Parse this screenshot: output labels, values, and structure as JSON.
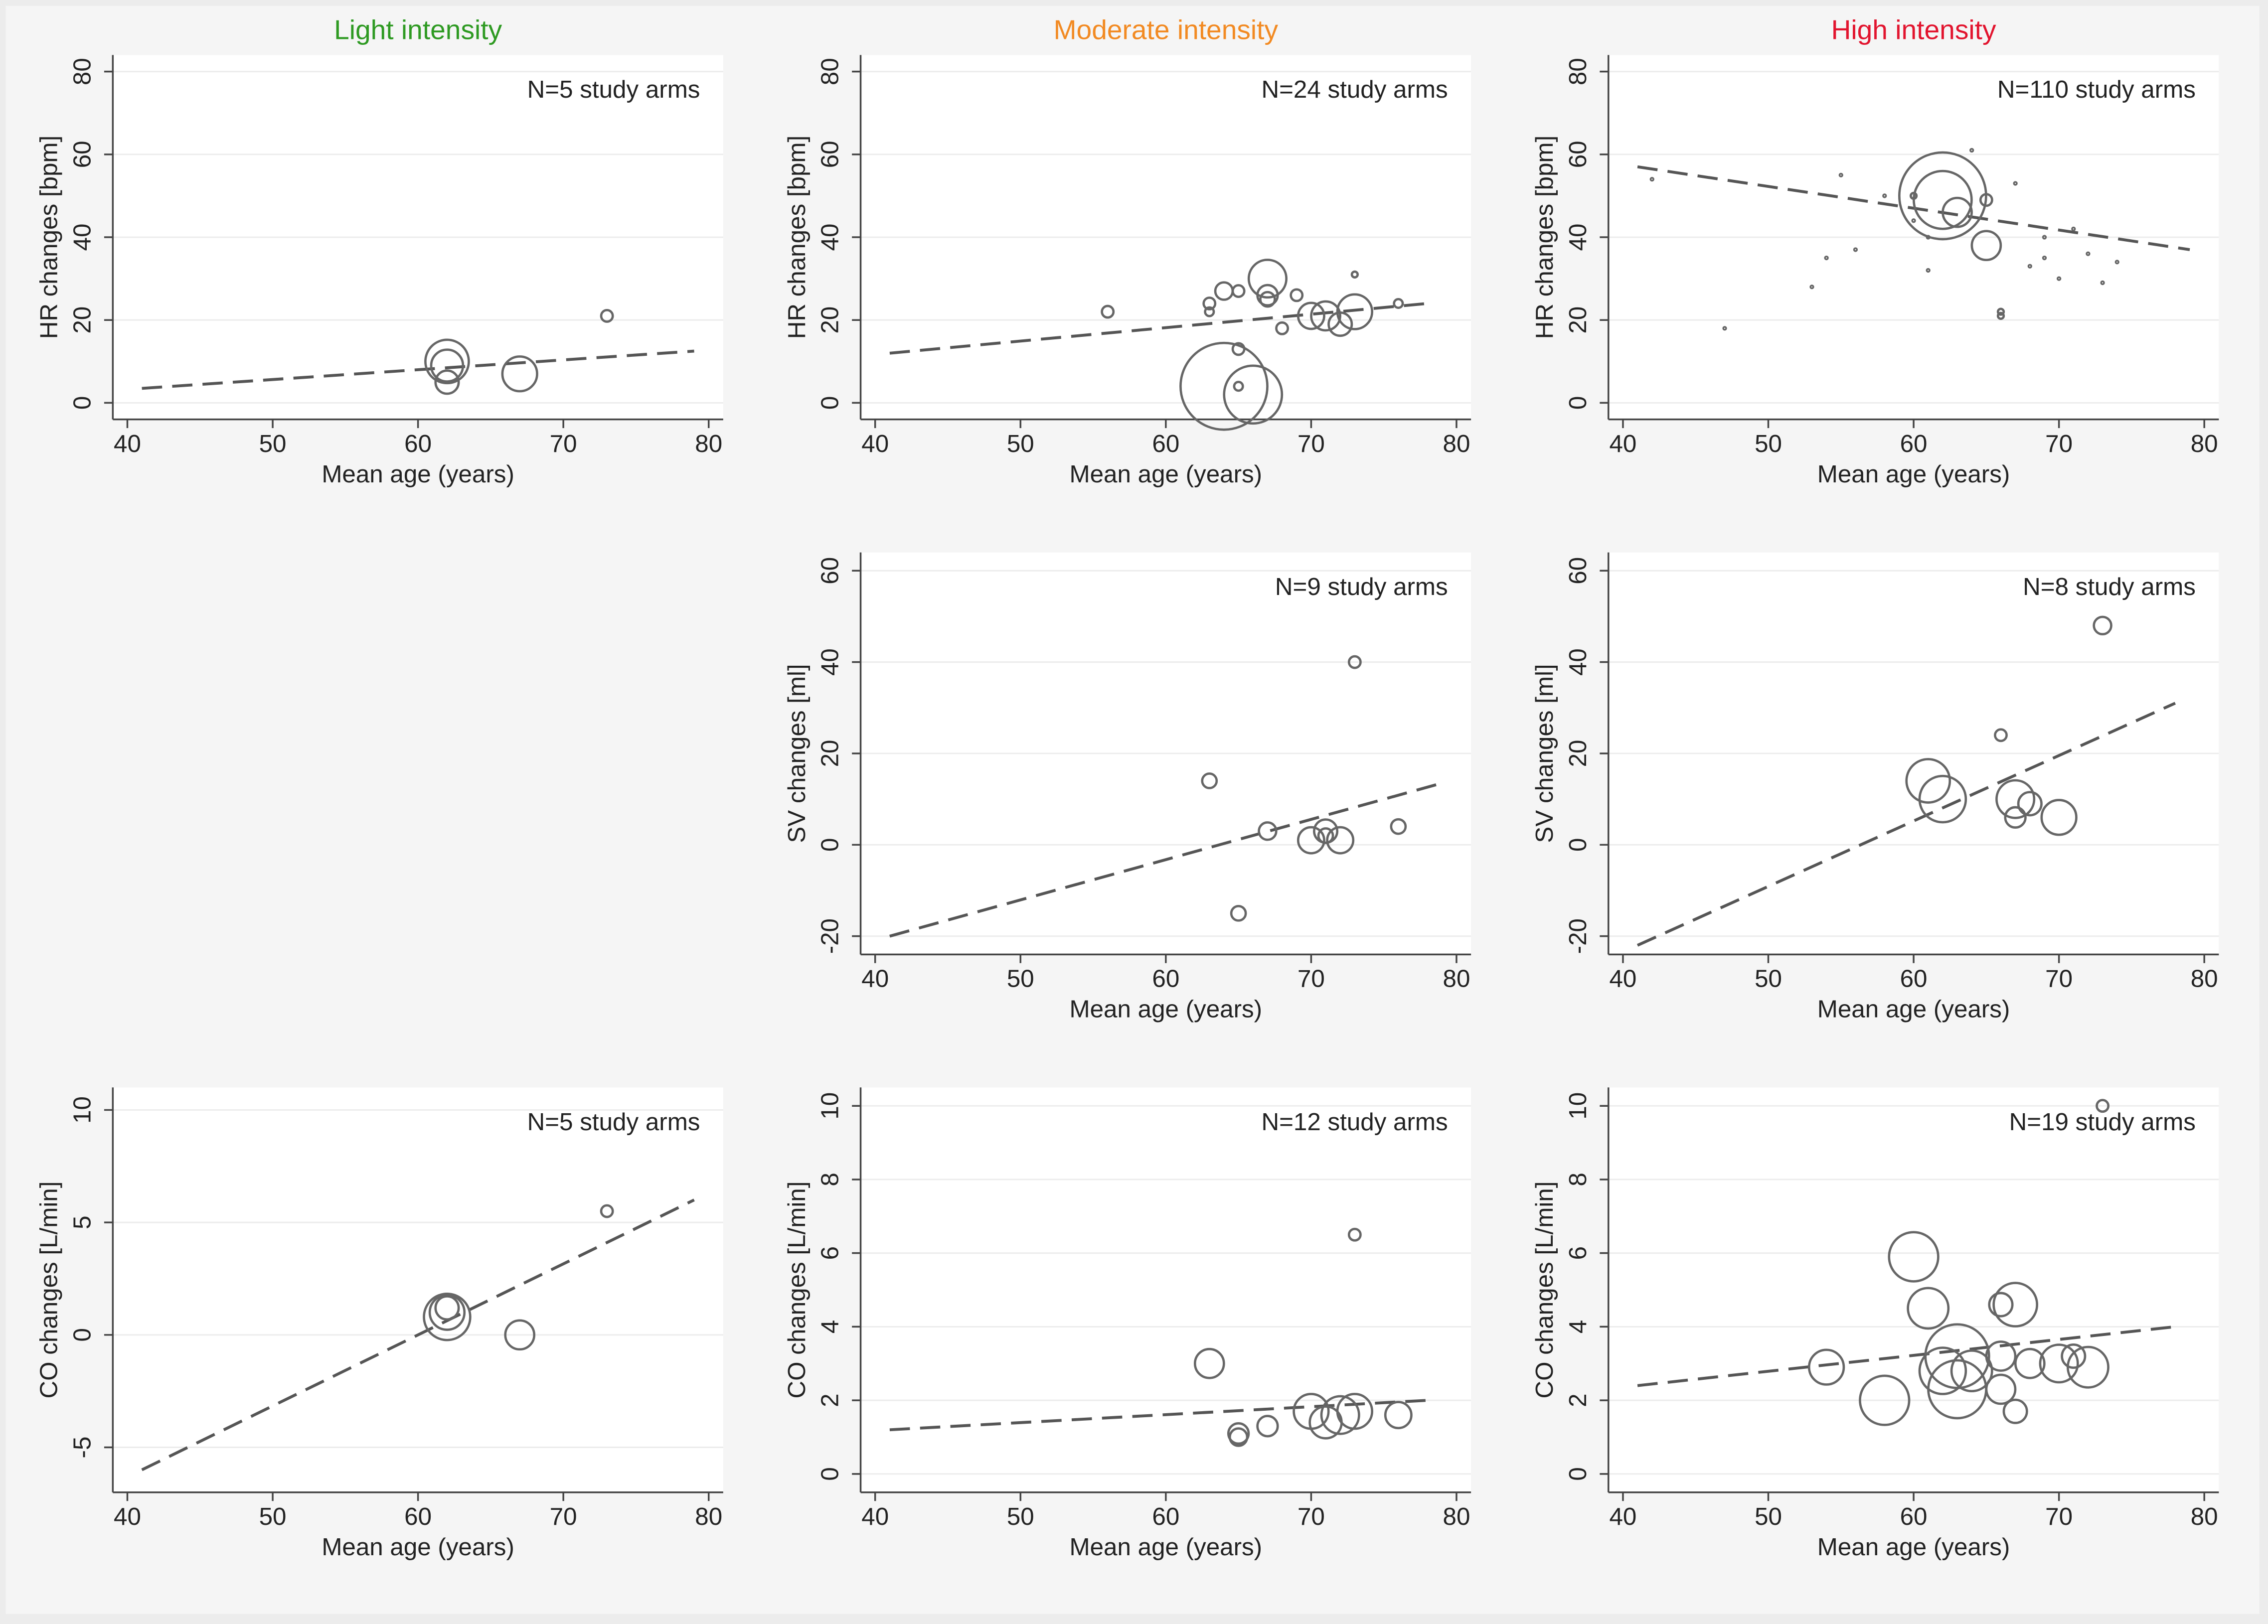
{
  "chart_data": [
    {
      "type": "bubble",
      "title": "Light intensity",
      "title_color": "#2e9a22",
      "annotation": "N=5 study arms",
      "xlabel": "Mean age (years)",
      "ylabel": "HR changes [bpm]",
      "x": [
        62,
        62,
        62,
        67,
        73
      ],
      "y": [
        10,
        9,
        5,
        7,
        21
      ],
      "size": [
        15,
        11,
        8,
        12,
        4
      ],
      "fit": {
        "x": [
          41,
          79
        ],
        "y": [
          3.5,
          12.5
        ]
      },
      "xlim": [
        39,
        81
      ],
      "xticks": [
        40,
        50,
        60,
        70,
        80
      ],
      "ylim": [
        -4,
        84
      ],
      "yticks": [
        0,
        20,
        40,
        60,
        80
      ],
      "grid": true
    },
    {
      "type": "bubble",
      "title": "Moderate intensity",
      "title_color": "#f28a22",
      "annotation": "N=24 study arms",
      "xlabel": "Mean age (years)",
      "ylabel": "HR changes [bpm]",
      "x": [
        56,
        63,
        63,
        64,
        65,
        67,
        67,
        67,
        69,
        68,
        70,
        71,
        72,
        73,
        73,
        76,
        64,
        66,
        65,
        65
      ],
      "y": [
        22,
        24,
        22,
        27,
        27,
        30,
        26,
        25,
        26,
        18,
        21,
        21,
        19,
        22,
        31,
        24,
        4,
        2,
        13,
        4
      ],
      "size": [
        4,
        4,
        3,
        6,
        4,
        13,
        7,
        5,
        4,
        4,
        9,
        10,
        8,
        12,
        2,
        3,
        30,
        20,
        4,
        3
      ],
      "fit": {
        "x": [
          41,
          78
        ],
        "y": [
          12,
          24
        ]
      },
      "xlim": [
        39,
        81
      ],
      "xticks": [
        40,
        50,
        60,
        70,
        80
      ],
      "ylim": [
        -4,
        84
      ],
      "yticks": [
        0,
        20,
        40,
        60,
        80
      ],
      "grid": true
    },
    {
      "type": "bubble",
      "title": "High intensity",
      "title_color": "#e2142e",
      "annotation": "N=110 study arms",
      "xlabel": "Mean age (years)",
      "ylabel": "HR changes [bpm]",
      "x": [
        62,
        62,
        63,
        65,
        65,
        66,
        66,
        47,
        53,
        54,
        56,
        58,
        60,
        61,
        68,
        69,
        70,
        72,
        73,
        55,
        61,
        64,
        67,
        69,
        71,
        74,
        42,
        60
      ],
      "y": [
        50,
        49,
        46,
        38,
        49,
        21,
        22,
        18,
        28,
        35,
        37,
        50,
        44,
        32,
        33,
        40,
        30,
        36,
        29,
        55,
        40,
        61,
        53,
        35,
        42,
        34,
        54,
        50
      ],
      "size": [
        30,
        20,
        10,
        10,
        4,
        2,
        2,
        1,
        1,
        1,
        1,
        1,
        1,
        1,
        1,
        1,
        1,
        1,
        1,
        1,
        1,
        1,
        1,
        1,
        1,
        1,
        1,
        2
      ],
      "fit": {
        "x": [
          41,
          79
        ],
        "y": [
          57,
          37
        ]
      },
      "xlim": [
        39,
        81
      ],
      "xticks": [
        40,
        50,
        60,
        70,
        80
      ],
      "ylim": [
        -4,
        84
      ],
      "yticks": [
        0,
        20,
        40,
        60,
        80
      ],
      "grid": true
    },
    {
      "type": "bubble",
      "annotation": "N=9 study arms",
      "xlabel": "Mean age (years)",
      "ylabel": "SV changes [ml]",
      "x": [
        63,
        65,
        67,
        70,
        71,
        71,
        72,
        73,
        76
      ],
      "y": [
        14,
        -15,
        3,
        1,
        3,
        2,
        1,
        40,
        4
      ],
      "size": [
        5,
        5,
        6,
        9,
        8,
        5,
        9,
        4,
        5
      ],
      "fit": {
        "x": [
          41,
          79
        ],
        "y": [
          -20,
          13.5
        ]
      },
      "xlim": [
        39,
        81
      ],
      "xticks": [
        40,
        50,
        60,
        70,
        80
      ],
      "ylim": [
        -24,
        64
      ],
      "yticks": [
        -20,
        0,
        20,
        40,
        60
      ],
      "grid": true
    },
    {
      "type": "bubble",
      "annotation": "N=8 study arms",
      "xlabel": "Mean age (years)",
      "ylabel": "SV changes [ml]",
      "x": [
        61,
        62,
        66,
        67,
        67,
        68,
        70,
        73
      ],
      "y": [
        14,
        10,
        24,
        10,
        6,
        9,
        6,
        48
      ],
      "size": [
        15,
        16,
        4,
        13,
        7,
        8,
        12,
        6
      ],
      "fit": {
        "x": [
          41,
          78
        ],
        "y": [
          -22,
          31
        ]
      },
      "xlim": [
        39,
        81
      ],
      "xticks": [
        40,
        50,
        60,
        70,
        80
      ],
      "ylim": [
        -24,
        64
      ],
      "yticks": [
        -20,
        0,
        20,
        40,
        60
      ],
      "grid": true
    },
    {
      "type": "bubble",
      "annotation": "N=5 study arms",
      "xlabel": "Mean age (years)",
      "ylabel": "CO changes [L/min]",
      "x": [
        62,
        62,
        62,
        67,
        73
      ],
      "y": [
        0.8,
        1.0,
        1.2,
        0,
        5.5
      ],
      "size": [
        16,
        12,
        8,
        10,
        4
      ],
      "fit": {
        "x": [
          41,
          79
        ],
        "y": [
          -6,
          6
        ]
      },
      "xlim": [
        39,
        81
      ],
      "xticks": [
        40,
        50,
        60,
        70,
        80
      ],
      "ylim": [
        -7,
        11
      ],
      "yticks": [
        -5,
        0,
        5,
        10
      ],
      "grid": true
    },
    {
      "type": "bubble",
      "annotation": "N=12 study arms",
      "xlabel": "Mean age (years)",
      "ylabel": "CO changes [L/min]",
      "x": [
        63,
        65,
        65,
        67,
        70,
        71,
        72,
        73,
        73,
        76
      ],
      "y": [
        3,
        1.1,
        1,
        1.3,
        1.7,
        1.4,
        1.6,
        1.7,
        6.5,
        1.6
      ],
      "size": [
        10,
        7,
        6,
        7,
        12,
        11,
        13,
        12,
        4,
        9
      ],
      "fit": {
        "x": [
          41,
          78
        ],
        "y": [
          1.2,
          2.0
        ]
      },
      "xlim": [
        39,
        81
      ],
      "xticks": [
        40,
        50,
        60,
        70,
        80
      ],
      "ylim": [
        -0.5,
        10.5
      ],
      "yticks": [
        0,
        2,
        4,
        6,
        8,
        10
      ],
      "grid": true
    },
    {
      "type": "bubble",
      "annotation": "N=19 study arms",
      "xlabel": "Mean age (years)",
      "ylabel": "CO changes [L/min]",
      "x": [
        54,
        58,
        60,
        61,
        62,
        63,
        63,
        64,
        66,
        66,
        66,
        67,
        67,
        68,
        70,
        71,
        72,
        73
      ],
      "y": [
        2.9,
        2.0,
        5.9,
        4.5,
        2.8,
        3.2,
        2.3,
        2.8,
        3.2,
        4.6,
        2.3,
        4.6,
        1.7,
        3.0,
        3.0,
        3.2,
        2.9,
        10
      ],
      "size": [
        12,
        17,
        17,
        14,
        16,
        22,
        20,
        14,
        10,
        8,
        10,
        15,
        8,
        10,
        13,
        8,
        14,
        4
      ],
      "fit": {
        "x": [
          41,
          78
        ],
        "y": [
          2.4,
          4.0
        ]
      },
      "xlim": [
        39,
        81
      ],
      "xticks": [
        40,
        50,
        60,
        70,
        80
      ],
      "ylim": [
        -0.5,
        10.5
      ],
      "yticks": [
        0,
        2,
        4,
        6,
        8,
        10
      ],
      "grid": true
    }
  ]
}
